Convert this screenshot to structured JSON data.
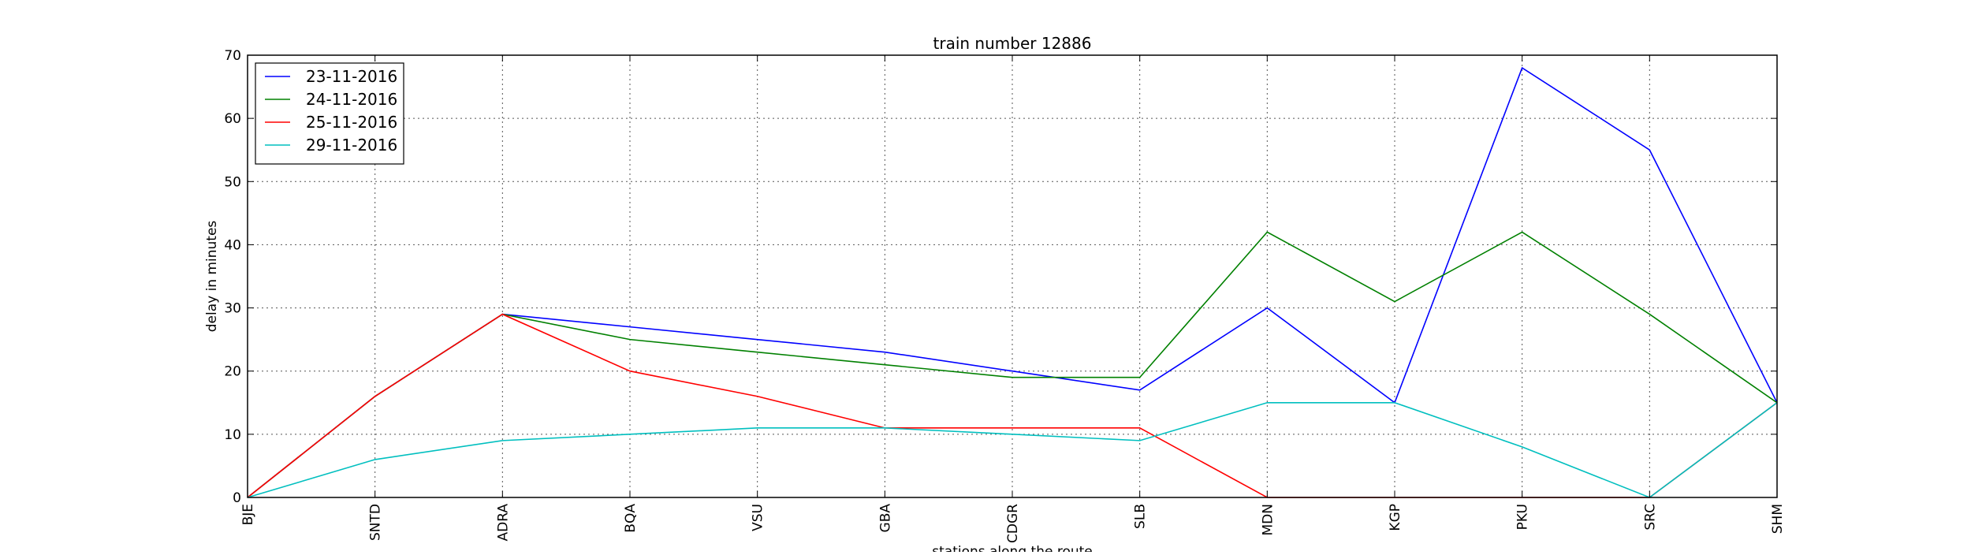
{
  "chart_data": {
    "type": "line",
    "title": "train number 12886",
    "xlabel": "stations along the route",
    "ylabel": "delay in minutes",
    "categories": [
      "BJE",
      "SNTD",
      "ADRA",
      "BQA",
      "VSU",
      "GBA",
      "CDGR",
      "SLB",
      "MDN",
      "KGP",
      "PKU",
      "SRC",
      "SHM"
    ],
    "ylim": [
      0,
      70
    ],
    "yticks": [
      0,
      10,
      20,
      30,
      40,
      50,
      60,
      70
    ],
    "grid": true,
    "legend_position": "upper-left",
    "series": [
      {
        "name": "23-11-2016",
        "color": "#0000ff",
        "values": [
          0,
          16,
          29,
          27,
          25,
          23,
          20,
          17,
          30,
          15,
          68,
          55,
          15
        ]
      },
      {
        "name": "24-11-2016",
        "color": "#008000",
        "values": [
          0,
          16,
          29,
          25,
          23,
          21,
          19,
          19,
          42,
          31,
          42,
          29,
          15
        ]
      },
      {
        "name": "25-11-2016",
        "color": "#ff0000",
        "values": [
          0,
          16,
          29,
          20,
          16,
          11,
          11,
          11,
          0,
          0,
          0,
          0,
          15
        ]
      },
      {
        "name": "29-11-2016",
        "color": "#00bfbf",
        "values": [
          0,
          6,
          9,
          10,
          11,
          11,
          10,
          9,
          15,
          15,
          8,
          0,
          15
        ]
      }
    ]
  }
}
